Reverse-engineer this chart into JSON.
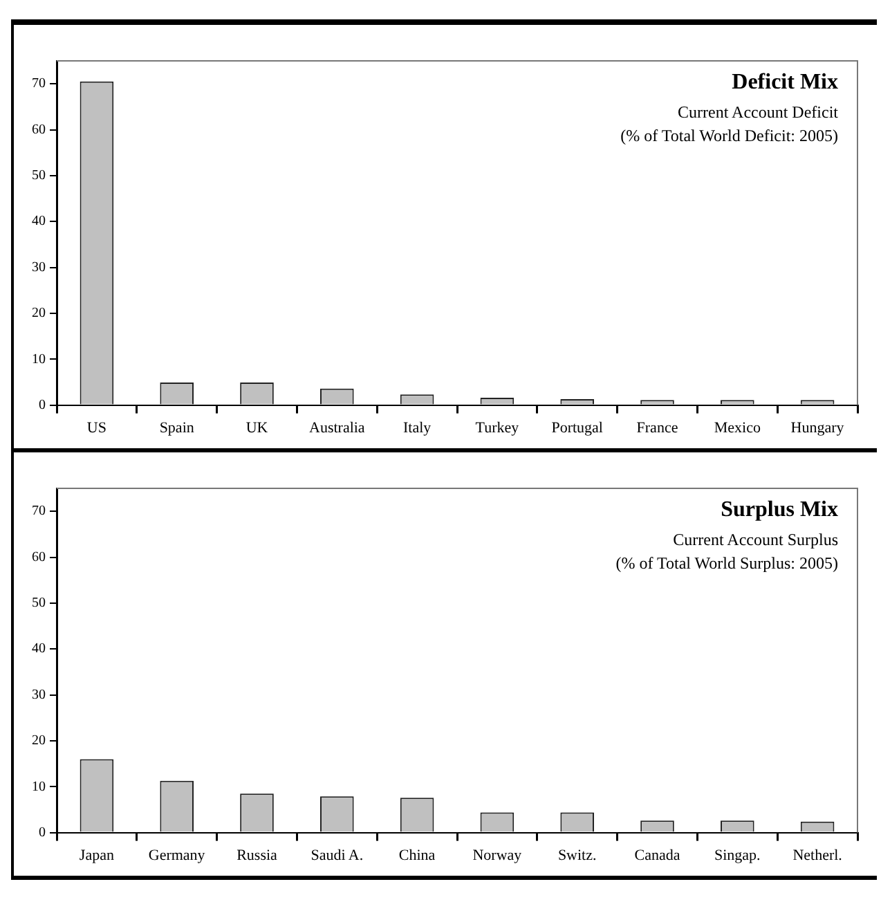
{
  "chart_data": [
    {
      "type": "bar",
      "title": "Deficit Mix",
      "subtitle": "Current Account Deficit\n(% of Total World Deficit: 2005)",
      "categories": [
        "US",
        "Spain",
        "UK",
        "Australia",
        "Italy",
        "Turkey",
        "Portugal",
        "France",
        "Mexico",
        "Hungary"
      ],
      "values": [
        70.5,
        4.9,
        4.9,
        3.6,
        2.3,
        1.6,
        1.3,
        1.1,
        1.1,
        1.1
      ],
      "color": "#c0c0c0",
      "ylim": [
        0,
        75
      ],
      "yticks": [
        0,
        10,
        20,
        30,
        40,
        50,
        60,
        70
      ],
      "grid": false,
      "legend": false
    },
    {
      "type": "bar",
      "title": "Surplus Mix",
      "subtitle": "Current Account Surplus\n(% of Total World Surplus: 2005)",
      "categories": [
        "Japan",
        "Germany",
        "Russia",
        "Saudi A.",
        "China",
        "Norway",
        "Switz.",
        "Canada",
        "Singap.",
        "Netherl."
      ],
      "values": [
        16,
        11.3,
        8.5,
        7.9,
        7.6,
        4.4,
        4.4,
        2.6,
        2.6,
        2.4
      ],
      "color": "#c0c0c0",
      "ylim": [
        0,
        75
      ],
      "yticks": [
        0,
        10,
        20,
        30,
        40,
        50,
        60,
        70
      ],
      "grid": false,
      "legend": false
    }
  ]
}
